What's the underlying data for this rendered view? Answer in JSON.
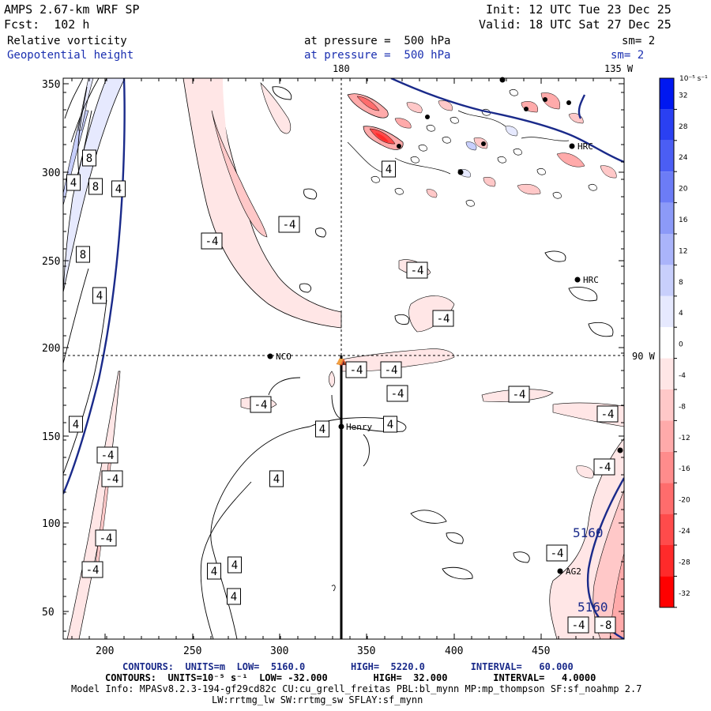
{
  "header": {
    "model": "AMPS 2.67-km WRF SP",
    "fcst": "Fcst:  102 h",
    "init": "Init: 12 UTC Tue 23 Dec 25",
    "valid": "Valid: 18 UTC Sat 27 Dec 25",
    "field1_name": "Relative vorticity",
    "field1_level": "at pressure =  500 hPa",
    "field1_sm": "sm= 2",
    "field2_name": "Geopotential height",
    "field2_level": "at pressure =  500 hPa",
    "field2_sm": "sm= 2"
  },
  "map": {
    "x_ticks": [
      "200",
      "250",
      "300",
      "350",
      "400",
      "450"
    ],
    "y_ticks": [
      "350",
      "300",
      "250",
      "200",
      "150",
      "100",
      "50"
    ],
    "lon_180": "180",
    "lon_135w": "135 W",
    "lat_90w": "90 W",
    "stations": [
      {
        "name": "NCO"
      },
      {
        "name": "Henry"
      },
      {
        "name": "HRC"
      },
      {
        "name": "HRC"
      },
      {
        "name": "AG2"
      }
    ],
    "contour_labels": {
      "neg4": "-4",
      "pos4": "4",
      "pos8": "8",
      "height": "5160",
      "neg8": "-8"
    }
  },
  "colorbar": {
    "unit": "10⁻⁵ s⁻¹",
    "levels": [
      "32",
      "28",
      "24",
      "20",
      "16",
      "12",
      "8",
      "4",
      "0",
      "-4",
      "-8",
      "-12",
      "-16",
      "-20",
      "-24",
      "-28",
      "-32"
    ],
    "colors": [
      "#0018f0",
      "#2a40f2",
      "#4b5ef4",
      "#6c7cf6",
      "#8c9af8",
      "#aab4fa",
      "#c8cffc",
      "#e6e9fe",
      "#ffffff",
      "#ffe6e6",
      "#ffc8c8",
      "#ffaaaa",
      "#ff8c8c",
      "#ff6c6c",
      "#ff4b4b",
      "#ff2a2a",
      "#ff0000"
    ]
  },
  "footer": {
    "line1": "CONTOURS:  UNITS=m  LOW=  5160.0        HIGH=  5220.0        INTERVAL=   60.000",
    "line2": "CONTOURS:  UNITS=10⁻⁵ s⁻¹  LOW= -32.000        HIGH=  32.000        INTERVAL=   4.0000",
    "line3": "Model Info: MPASv8.2.3-194-gf29cd82c CU:cu_grell_freitas PBL:bl_mynn MP:mp_thompson SF:sf_noahmp 2.7",
    "line4": "LW:rrtmg_lw SW:rrtmg_sw SFLAY:sf_mynn"
  }
}
